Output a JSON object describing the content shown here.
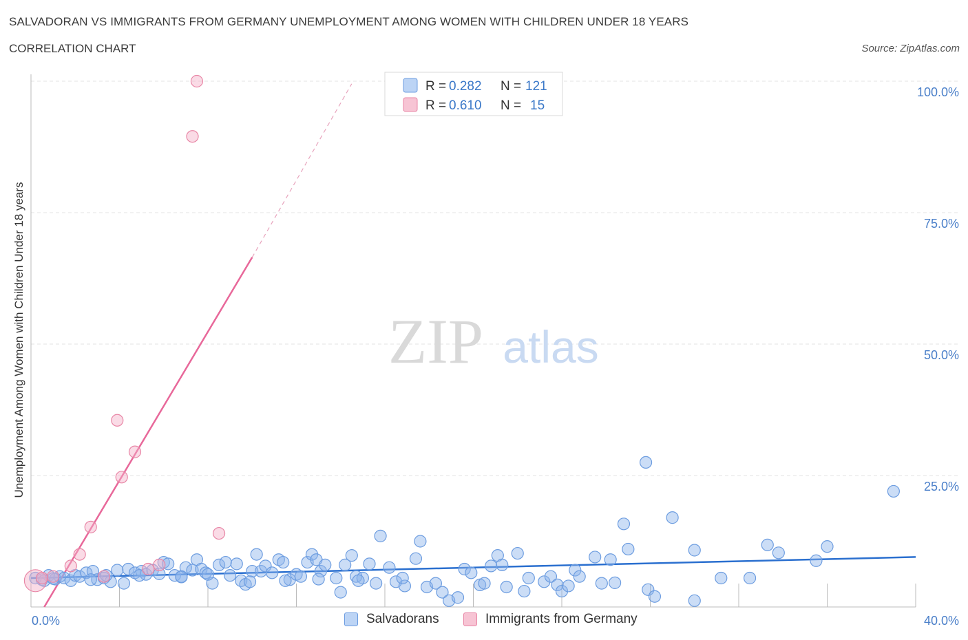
{
  "chart_data": {
    "type": "scatter",
    "title": "SALVADORAN VS IMMIGRANTS FROM GERMANY UNEMPLOYMENT AMONG WOMEN WITH CHILDREN UNDER 18 YEARS",
    "subtitle": "CORRELATION CHART",
    "source": "Source: ZipAtlas.com",
    "xlabel": "",
    "ylabel": "Unemployment Among Women with Children Under 18 years",
    "xlim": [
      0,
      40
    ],
    "ylim": [
      0,
      100
    ],
    "x_tick_labels": [
      {
        "value": 0,
        "label": "0.0%"
      },
      {
        "value": 40,
        "label": "40.0%"
      }
    ],
    "y_tick_labels": [
      {
        "value": 100,
        "label": "100.0%"
      },
      {
        "value": 75,
        "label": "75.0%"
      },
      {
        "value": 50,
        "label": "50.0%"
      },
      {
        "value": 25,
        "label": "25.0%"
      }
    ],
    "grid": true,
    "legend": [
      {
        "name": "Salvadorans",
        "r_label": "R =",
        "r": "0.282",
        "n_label": "N =",
        "n": "121",
        "color": "#6d9de0",
        "fill": "#bcd4f5"
      },
      {
        "name": "Immigrants from Germany",
        "r_label": "R =",
        "r": "0.610",
        "n_label": "N =",
        "n": "15",
        "color": "#e886a6",
        "fill": "#f7c4d4"
      }
    ],
    "series": [
      {
        "name": "Salvadorans",
        "trend": {
          "x0": 0.0,
          "y0": 5.5,
          "x1": 40.0,
          "y1": 9.5,
          "color": "#2a6fcf"
        },
        "points": [
          [
            0.2,
            5.5
          ],
          [
            0.5,
            5.2
          ],
          [
            0.8,
            6.0
          ],
          [
            1.1,
            5.3
          ],
          [
            1.3,
            5.8
          ],
          [
            1.5,
            5.5
          ],
          [
            1.8,
            5.0
          ],
          [
            2.0,
            6.0
          ],
          [
            2.2,
            5.8
          ],
          [
            2.5,
            6.5
          ],
          [
            2.8,
            6.8
          ],
          [
            3.0,
            5.2
          ],
          [
            3.3,
            5.5
          ],
          [
            3.6,
            4.8
          ],
          [
            3.9,
            7.0
          ],
          [
            4.2,
            4.5
          ],
          [
            4.4,
            7.2
          ],
          [
            4.7,
            6.5
          ],
          [
            5.0,
            6.8
          ],
          [
            5.2,
            6.2
          ],
          [
            5.5,
            7.0
          ],
          [
            5.8,
            6.3
          ],
          [
            6.0,
            8.5
          ],
          [
            6.2,
            8.2
          ],
          [
            6.5,
            6.0
          ],
          [
            6.8,
            5.8
          ],
          [
            7.0,
            7.5
          ],
          [
            7.3,
            7.0
          ],
          [
            7.5,
            9.0
          ],
          [
            7.7,
            7.2
          ],
          [
            7.9,
            6.5
          ],
          [
            8.2,
            4.5
          ],
          [
            8.5,
            8.0
          ],
          [
            8.8,
            8.5
          ],
          [
            9.0,
            6.0
          ],
          [
            9.3,
            8.2
          ],
          [
            9.5,
            5.0
          ],
          [
            9.7,
            4.3
          ],
          [
            10.0,
            6.8
          ],
          [
            10.2,
            10.0
          ],
          [
            10.4,
            6.8
          ],
          [
            10.6,
            7.8
          ],
          [
            10.9,
            6.5
          ],
          [
            11.2,
            9.0
          ],
          [
            11.4,
            8.5
          ],
          [
            11.7,
            5.2
          ],
          [
            12.0,
            6.2
          ],
          [
            12.2,
            5.8
          ],
          [
            12.5,
            8.5
          ],
          [
            12.7,
            10.0
          ],
          [
            12.9,
            9.0
          ],
          [
            13.1,
            6.8
          ],
          [
            13.3,
            8.0
          ],
          [
            13.8,
            5.5
          ],
          [
            14.0,
            2.8
          ],
          [
            14.2,
            8.0
          ],
          [
            14.5,
            9.8
          ],
          [
            14.7,
            5.8
          ],
          [
            15.0,
            5.5
          ],
          [
            15.3,
            8.2
          ],
          [
            15.6,
            4.5
          ],
          [
            15.8,
            13.5
          ],
          [
            16.2,
            7.5
          ],
          [
            16.5,
            4.8
          ],
          [
            16.9,
            4.0
          ],
          [
            16.8,
            5.5
          ],
          [
            17.4,
            9.2
          ],
          [
            17.6,
            12.5
          ],
          [
            17.9,
            3.8
          ],
          [
            18.3,
            4.5
          ],
          [
            18.6,
            2.8
          ],
          [
            18.9,
            1.2
          ],
          [
            19.3,
            1.8
          ],
          [
            19.6,
            7.2
          ],
          [
            19.9,
            6.5
          ],
          [
            20.3,
            4.2
          ],
          [
            20.5,
            4.5
          ],
          [
            20.8,
            7.8
          ],
          [
            21.1,
            9.8
          ],
          [
            21.3,
            8.0
          ],
          [
            21.5,
            3.8
          ],
          [
            22.0,
            10.2
          ],
          [
            22.3,
            3.0
          ],
          [
            22.5,
            5.5
          ],
          [
            23.2,
            4.8
          ],
          [
            23.5,
            5.8
          ],
          [
            23.8,
            4.2
          ],
          [
            24.0,
            3.0
          ],
          [
            24.3,
            4.0
          ],
          [
            24.6,
            7.0
          ],
          [
            24.8,
            5.8
          ],
          [
            25.5,
            9.5
          ],
          [
            25.8,
            4.5
          ],
          [
            26.2,
            9.0
          ],
          [
            26.4,
            4.6
          ],
          [
            26.8,
            15.8
          ],
          [
            27.0,
            11.0
          ],
          [
            27.9,
            3.3
          ],
          [
            28.2,
            2.0
          ],
          [
            27.8,
            27.5
          ],
          [
            29.0,
            17.0
          ],
          [
            30.0,
            10.8
          ],
          [
            30.0,
            1.2
          ],
          [
            31.2,
            5.5
          ],
          [
            32.5,
            5.5
          ],
          [
            33.3,
            11.8
          ],
          [
            33.8,
            10.3
          ],
          [
            35.5,
            8.8
          ],
          [
            36.0,
            11.5
          ],
          [
            39.0,
            22.0
          ],
          [
            0.6,
            5.0
          ],
          [
            1.0,
            5.4
          ],
          [
            2.7,
            5.2
          ],
          [
            3.4,
            6.0
          ],
          [
            4.9,
            6.0
          ],
          [
            6.8,
            5.7
          ],
          [
            8.0,
            6.2
          ],
          [
            9.9,
            4.8
          ],
          [
            11.5,
            5.0
          ],
          [
            13.0,
            5.3
          ],
          [
            14.8,
            5.0
          ]
        ]
      },
      {
        "name": "Immigrants from Germany",
        "trend": {
          "x0": 0.6,
          "y0": 0.0,
          "x1": 10.0,
          "y1": 66.5,
          "dash_x1": 14.5,
          "dash_y1": 99.5,
          "color": "#e8689a"
        },
        "points": [
          [
            0.2,
            5.0
          ],
          [
            0.5,
            5.5
          ],
          [
            1.0,
            5.8
          ],
          [
            1.8,
            7.8
          ],
          [
            2.2,
            10.0
          ],
          [
            2.7,
            15.2
          ],
          [
            3.3,
            5.8
          ],
          [
            3.9,
            35.5
          ],
          [
            4.1,
            24.7
          ],
          [
            4.7,
            29.5
          ],
          [
            5.3,
            7.2
          ],
          [
            5.8,
            8.0
          ],
          [
            7.3,
            89.5
          ],
          [
            7.5,
            100.0
          ],
          [
            8.5,
            14.0
          ]
        ]
      }
    ]
  },
  "watermark": {
    "zip": "ZIP",
    "atlas": "atlas"
  }
}
